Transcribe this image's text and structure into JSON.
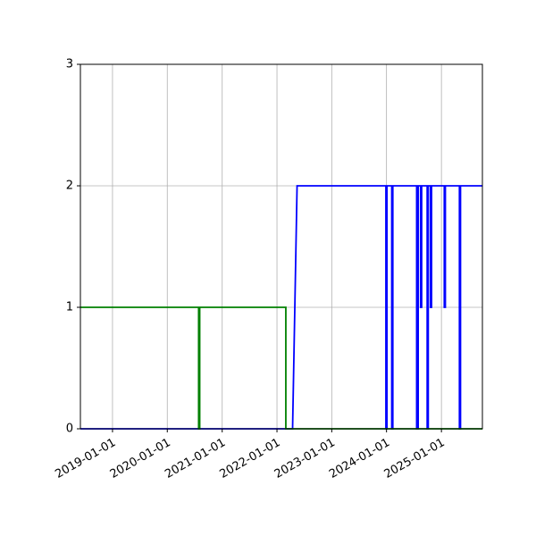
{
  "chart_data": {
    "type": "line",
    "title": "",
    "xlabel": "",
    "ylabel": "",
    "xlim": [
      "2018-06-01",
      "2025-10-01"
    ],
    "ylim": [
      0,
      3
    ],
    "x_ticks": [
      "2019-01-01",
      "2020-01-01",
      "2021-01-01",
      "2022-01-01",
      "2023-01-01",
      "2024-01-01",
      "2025-01-01"
    ],
    "y_ticks": [
      "0",
      "1",
      "2",
      "3"
    ],
    "grid": true,
    "series": [
      {
        "color": "#0000ff",
        "points": [
          [
            "2018-06-01",
            0
          ],
          [
            "2022-04-15",
            0
          ],
          [
            "2022-05-15",
            2
          ],
          [
            "2023-12-28",
            2
          ],
          [
            "2023-12-28",
            0
          ],
          [
            "2024-01-04",
            0
          ],
          [
            "2024-01-04",
            2
          ],
          [
            "2024-02-05",
            2
          ],
          [
            "2024-02-05",
            0
          ],
          [
            "2024-02-12",
            0
          ],
          [
            "2024-02-12",
            2
          ],
          [
            "2024-07-20",
            2
          ],
          [
            "2024-07-20",
            0
          ],
          [
            "2024-07-30",
            0
          ],
          [
            "2024-07-30",
            2
          ],
          [
            "2024-08-15",
            2
          ],
          [
            "2024-08-15",
            1
          ],
          [
            "2024-08-22",
            1
          ],
          [
            "2024-08-22",
            2
          ],
          [
            "2024-09-28",
            2
          ],
          [
            "2024-09-28",
            0
          ],
          [
            "2024-10-05",
            0
          ],
          [
            "2024-10-05",
            2
          ],
          [
            "2024-10-20",
            2
          ],
          [
            "2024-10-20",
            1
          ],
          [
            "2024-10-27",
            1
          ],
          [
            "2024-10-27",
            2
          ],
          [
            "2025-01-20",
            2
          ],
          [
            "2025-01-20",
            1
          ],
          [
            "2025-01-27",
            1
          ],
          [
            "2025-01-27",
            2
          ],
          [
            "2025-05-01",
            2
          ],
          [
            "2025-05-01",
            0
          ],
          [
            "2025-05-08",
            0
          ],
          [
            "2025-05-08",
            2
          ],
          [
            "2025-10-01",
            2
          ]
        ]
      },
      {
        "color": "#008000",
        "points": [
          [
            "2018-06-01",
            1
          ],
          [
            "2020-07-28",
            1
          ],
          [
            "2020-07-28",
            0
          ],
          [
            "2020-08-04",
            0
          ],
          [
            "2020-08-04",
            1
          ],
          [
            "2022-03-01",
            1
          ],
          [
            "2022-03-01",
            0
          ],
          [
            "2025-10-01",
            0
          ]
        ]
      }
    ]
  }
}
